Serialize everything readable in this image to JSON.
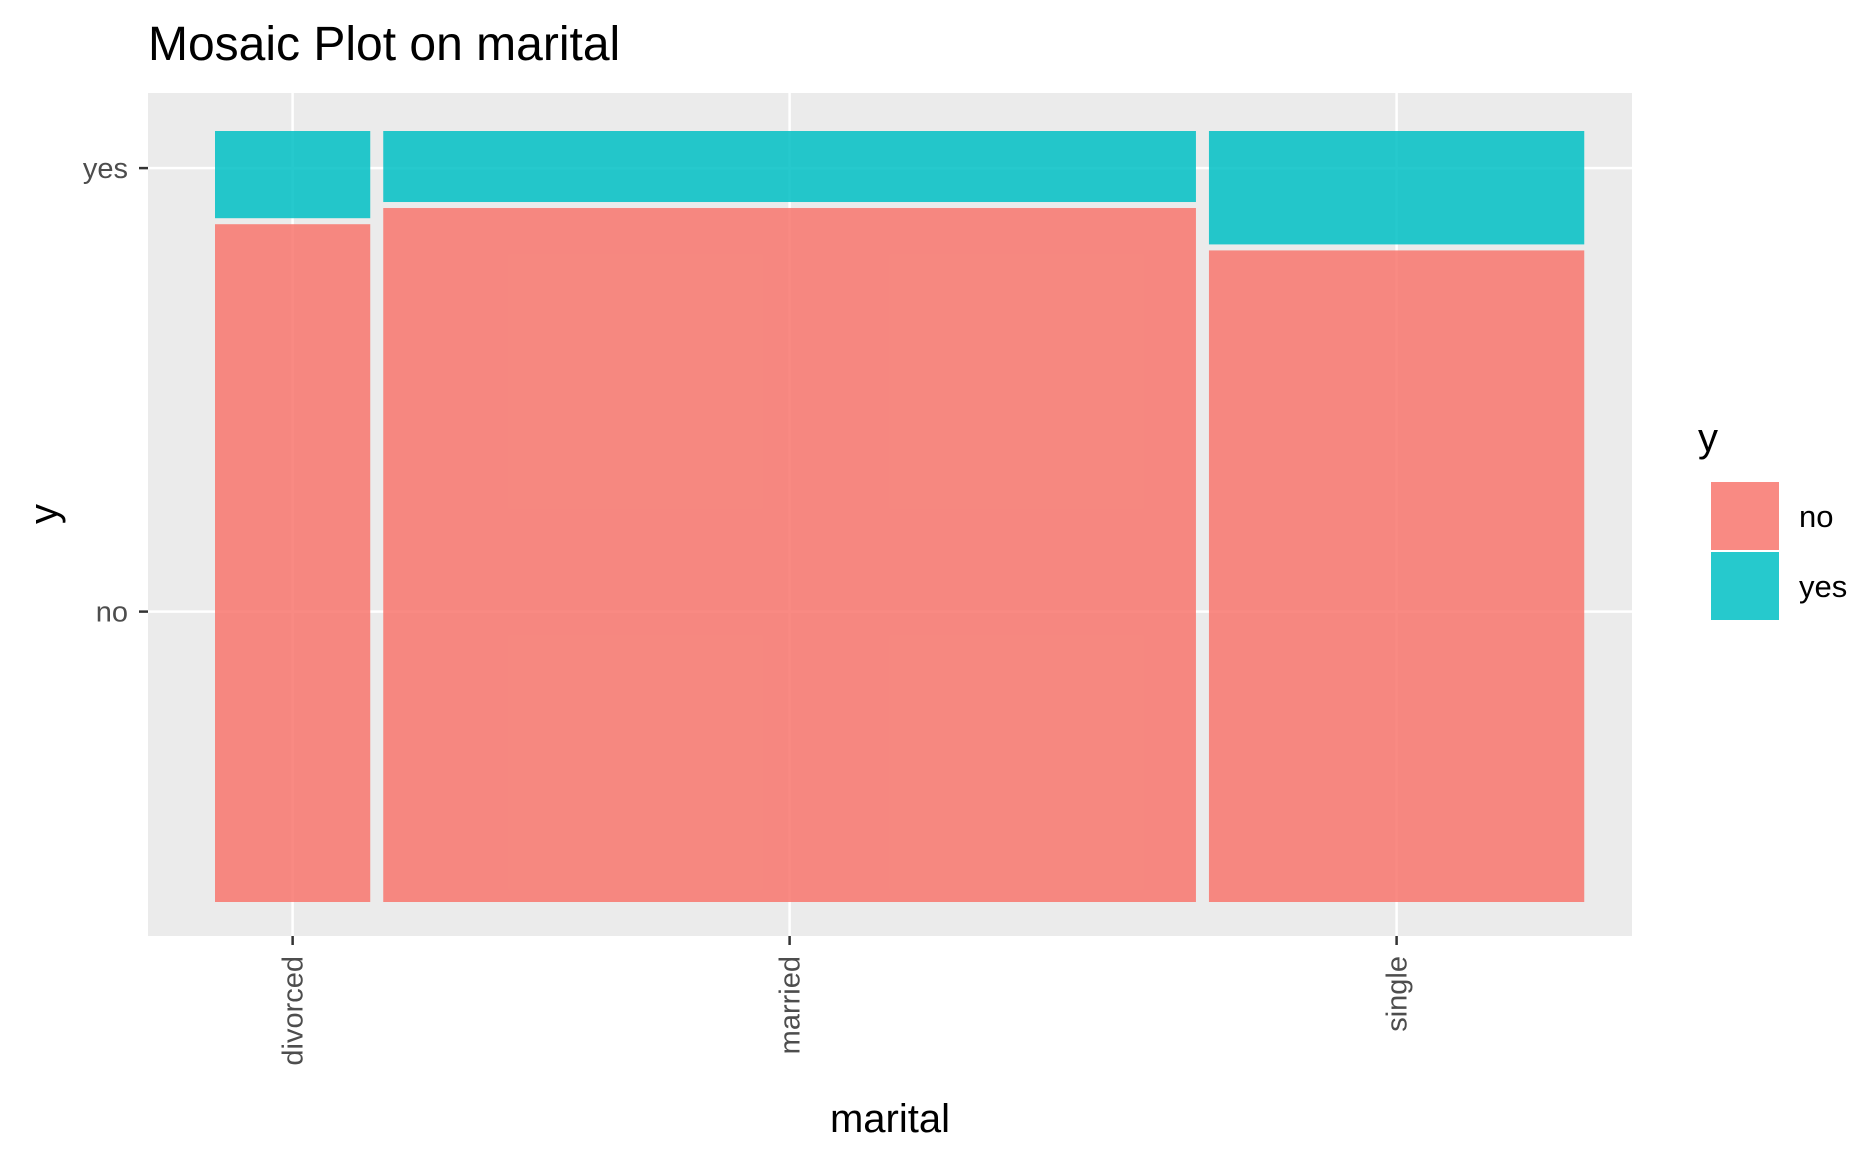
{
  "chart_data": {
    "type": "mosaic",
    "title": "Mosaic Plot on marital",
    "xlabel": "marital",
    "ylabel": "y",
    "categories": [
      "divorced",
      "married",
      "single"
    ],
    "x_share": [
      0.115,
      0.602,
      0.278
    ],
    "fill_levels": [
      "no",
      "yes"
    ],
    "y_ticks": [
      "no",
      "yes"
    ],
    "series": [
      {
        "name": "no",
        "values": [
          0.883,
          0.904,
          0.849
        ]
      },
      {
        "name": "yes",
        "values": [
          0.117,
          0.096,
          0.151
        ]
      }
    ],
    "legend": {
      "title": "y",
      "position": "right",
      "entries": [
        {
          "label": "no",
          "color": "#F8766D"
        },
        {
          "label": "yes",
          "color": "#00BFC4"
        }
      ]
    },
    "colors": {
      "no": "#F8766D",
      "yes": "#00BFC4",
      "panel_bg": "#EBEBEB",
      "grid": "#FFFFFF"
    },
    "grid": true
  }
}
